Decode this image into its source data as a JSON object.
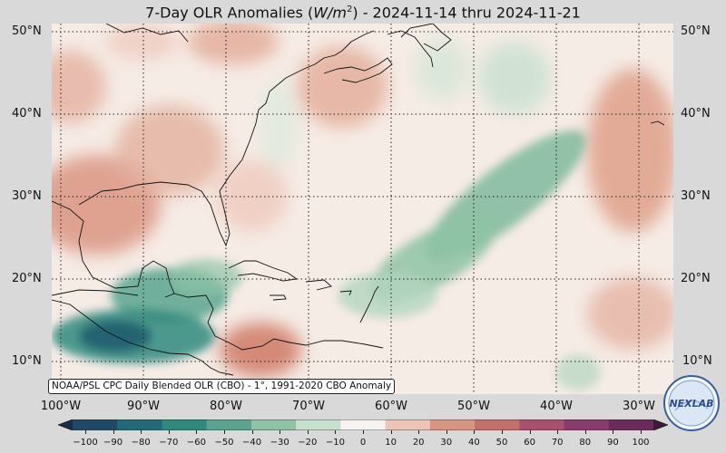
{
  "title": {
    "prefix": "7-Day OLR Anomalies (",
    "unit_base": "W/m",
    "unit_exp": "2",
    "suffix": ") - 2024-11-14 thru 2024-11-21"
  },
  "map": {
    "lat_labels": [
      "50°N",
      "40°N",
      "30°N",
      "20°N",
      "10°N"
    ],
    "lon_labels": [
      "100°W",
      "90°W",
      "80°W",
      "70°W",
      "60°W",
      "50°W",
      "40°W",
      "30°W"
    ],
    "source_note": "NOAA/PSL CPC Daily Blended OLR (CBO) - 1°, 1991-2020 CBO Anomaly",
    "colors": {
      "positive_strong": "#c9756a",
      "positive_weak": "#efd3c9",
      "neutral": "#f6ece6",
      "negative_weak": "#cfe3d4",
      "negative_mid": "#8fc3a6",
      "negative_strong": "#2f8a7e",
      "negative_deep": "#1e5f70",
      "coastline": "#111111",
      "gridline": "#222222"
    }
  },
  "colorbar": {
    "ticks": [
      "−100",
      "−90",
      "−80",
      "−70",
      "−60",
      "−50",
      "−40",
      "−30",
      "−20",
      "−10",
      "0",
      "10",
      "20",
      "30",
      "40",
      "50",
      "60",
      "70",
      "80",
      "90",
      "100"
    ],
    "colors": [
      "#1a2a48",
      "#1e4a66",
      "#1f6b78",
      "#2f8a7e",
      "#58a48e",
      "#8fc3a6",
      "#c8e0cf",
      "#f7f3f0",
      "#edc4b6",
      "#d99580",
      "#c4706a",
      "#a8506d",
      "#8a3a6e",
      "#6a2a5c",
      "#3c1a38"
    ]
  },
  "logo": {
    "text": "NEXLAB"
  }
}
